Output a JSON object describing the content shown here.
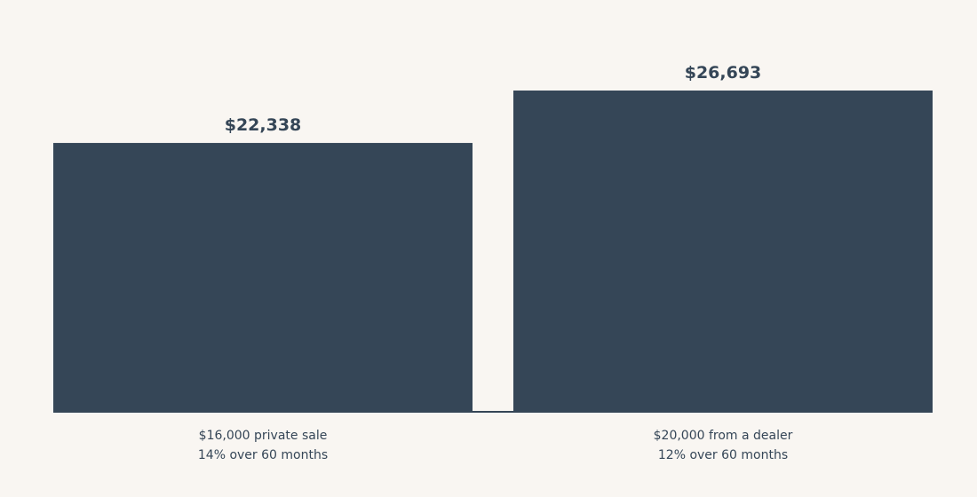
{
  "chart_data": {
    "type": "bar",
    "categories": [
      [
        "$16,000 private sale",
        "14% over 60 months"
      ],
      [
        "$20,000 from a dealer",
        "12% over 60 months"
      ]
    ],
    "values": [
      22338,
      26693
    ],
    "value_labels": [
      "$22,338",
      "$26,693"
    ],
    "title": "",
    "xlabel": "",
    "ylabel": "",
    "ylim": [
      0,
      26693
    ],
    "grid": false,
    "legend": "none"
  },
  "colors": {
    "bar": "#354657",
    "background": "#f9f6f2",
    "text": "#354657"
  }
}
